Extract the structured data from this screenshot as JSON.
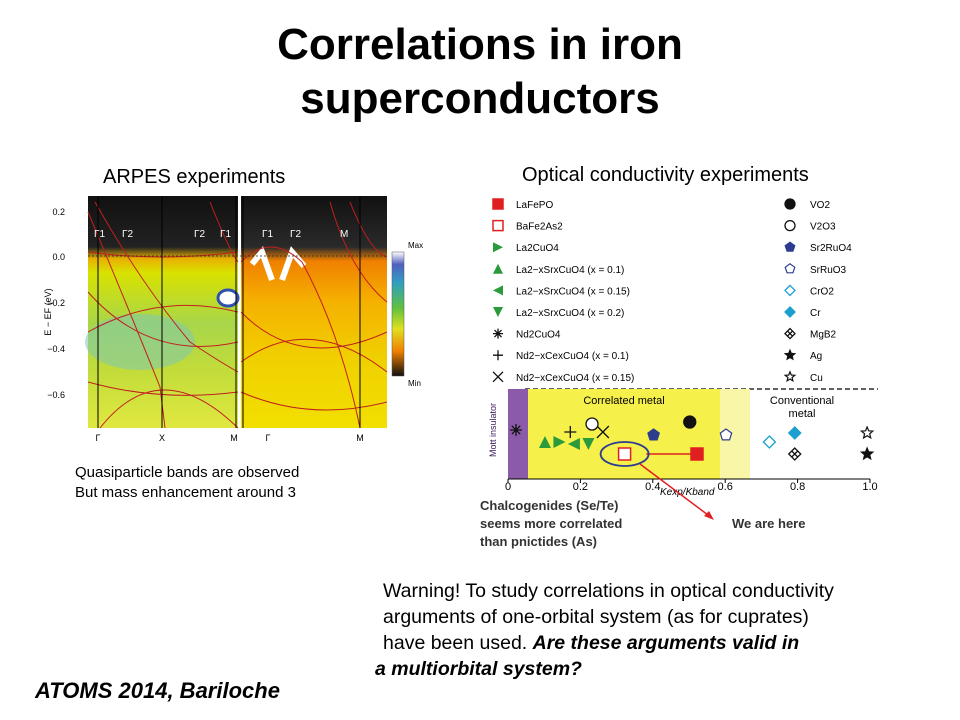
{
  "slide": {
    "title_line1": "Correlations in iron",
    "title_line2": "superconductors",
    "footer": "ATOMS 2014, Bariloche"
  },
  "arpes": {
    "heading": "ARPES experiments",
    "note_line1": "Quasiparticle bands are observed",
    "note_line2": "But mass enhancement around 3"
  },
  "optical": {
    "heading": "Optical conductivity experiments",
    "legend_left": [
      "LaFePO",
      "BaFe2As2",
      "La2CuO4",
      "La2−xSrxCuO4 (x = 0.1)",
      "La2−xSrxCuO4 (x = 0.15)",
      "La2−xSrxCuO4 (x = 0.2)",
      "Nd2CuO4",
      "Nd2−xCexCuO4 (x = 0.1)",
      "Nd2−xCexCuO4 (x = 0.15)"
    ],
    "legend_right": [
      "VO2",
      "V2O3",
      "Sr2RuO4",
      "SrRuO3",
      "CrO2",
      "Cr",
      "MgB2",
      "Ag",
      "Cu"
    ],
    "region_mott": "Mott insulator",
    "region_correlated": "Correlated metal",
    "region_conventional_line1": "Conventional",
    "region_conventional_line2": "metal",
    "chalco_line1": "Chalcogenides (Se/Te)",
    "chalco_line2": "seems more correlated",
    "chalco_line3": "than pnictides (As)",
    "we_are_here": "We are here"
  },
  "warning": {
    "line1": "Warning! To study correlations in optical conductivity",
    "line2": "arguments of one-orbital system (as for cuprates)",
    "line3_plain": "have been used. ",
    "line3_em": "Are these arguments valid in",
    "line4_em": "a multiorbital system?"
  },
  "chart_data": [
    {
      "type": "line",
      "description_label": "ARPES band dispersion",
      "ylabel": "E − EF (eV)",
      "yticks": [
        "0.2",
        "0.0",
        "−0.2",
        "−0.4",
        "−0.6"
      ],
      "ylim": [
        -0.72,
        0.24
      ],
      "xticks": [
        "Γ",
        "X",
        "M",
        "Γ",
        "M"
      ],
      "symmetry_labels": [
        "Γ1",
        "Γ2",
        "Γ2",
        "Γ1",
        "Γ1",
        "Γ2",
        "M"
      ],
      "colorbar_max": "Max",
      "colorbar_min": "Min"
    },
    {
      "type": "scatter",
      "xlabel": "Kexp/Kband",
      "xticks": [
        "0",
        "0.2",
        "0.4",
        "0.6",
        "0.8",
        "1.0"
      ],
      "xlim": [
        0,
        1.0
      ],
      "points": [
        {
          "material": "LaFePO",
          "x": 0.5
        },
        {
          "material": "BaFe2As2",
          "x": 0.3
        },
        {
          "material": "La2CuO4",
          "x": 0.12
        },
        {
          "material": "La2−xSrxCuO4 (x = 0.1)",
          "x": 0.08
        },
        {
          "material": "La2−xSrxCuO4 (x = 0.15)",
          "x": 0.16
        },
        {
          "material": "La2−xSrxCuO4 (x = 0.2)",
          "x": 0.2
        },
        {
          "material": "Nd2CuO4",
          "x": 0.0
        },
        {
          "material": "Nd2−xCexCuO4 (x = 0.1)",
          "x": 0.15
        },
        {
          "material": "Nd2−xCexCuO4 (x = 0.15)",
          "x": 0.24
        },
        {
          "material": "VO2",
          "x": 0.48
        },
        {
          "material": "V2O3",
          "x": 0.21
        },
        {
          "material": "Sr2RuO4",
          "x": 0.38
        },
        {
          "material": "SrRuO3",
          "x": 0.58
        },
        {
          "material": "CrO2",
          "x": 0.7
        },
        {
          "material": "Cr",
          "x": 0.77
        },
        {
          "material": "MgB2",
          "x": 0.77
        },
        {
          "material": "Ag",
          "x": 0.97
        },
        {
          "material": "Cu",
          "x": 0.97
        }
      ],
      "colors": {
        "mott": "#8b5aa8",
        "correlated": "#f6f04a",
        "red": "#e02020",
        "green": "#2a9a3a",
        "blue": "#2c3d8f",
        "cyan": "#1a9fd0"
      }
    }
  ]
}
